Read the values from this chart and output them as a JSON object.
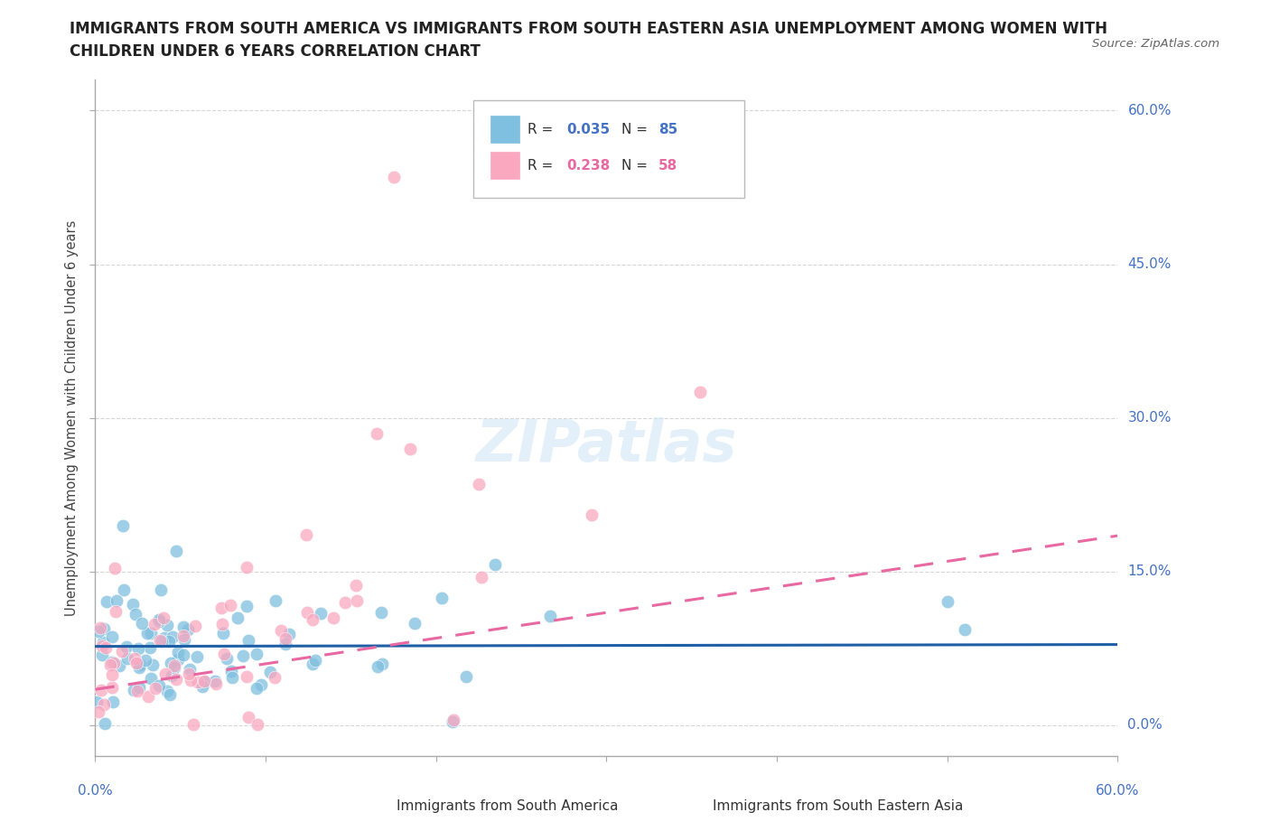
{
  "title_line1": "IMMIGRANTS FROM SOUTH AMERICA VS IMMIGRANTS FROM SOUTH EASTERN ASIA UNEMPLOYMENT AMONG WOMEN WITH",
  "title_line2": "CHILDREN UNDER 6 YEARS CORRELATION CHART",
  "source": "Source: ZipAtlas.com",
  "ylabel": "Unemployment Among Women with Children Under 6 years",
  "ytick_labels": [
    "60.0%",
    "45.0%",
    "30.0%",
    "15.0%",
    "0.0%"
  ],
  "ytick_values": [
    0.6,
    0.45,
    0.3,
    0.15,
    0.0
  ],
  "xlim": [
    0.0,
    0.6
  ],
  "ylim": [
    -0.03,
    0.63
  ],
  "r_sa": 0.035,
  "n_sa": 85,
  "r_sea": 0.238,
  "n_sea": 58,
  "color_sa": "#7fbfdf",
  "color_sea": "#f9a8c0",
  "trendline_sa_color": "#1f5fa6",
  "trendline_sea_color": "#e868a2",
  "legend_label_sa": "Immigrants from South America",
  "legend_label_sea": "Immigrants from South Eastern Asia",
  "background_color": "#ffffff",
  "grid_color": "#cccccc",
  "axis_color": "#4472c4",
  "title_color": "#222222"
}
